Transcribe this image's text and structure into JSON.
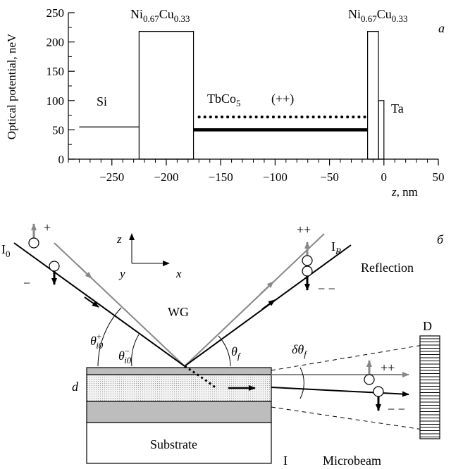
{
  "panel_a": {
    "panel_letter": "a",
    "ylabel": "Optical potential, neV",
    "xlabel_var": "z",
    "xlabel_unit": ", nm",
    "x_ticks": [
      -250,
      -200,
      -150,
      -100,
      -50,
      0,
      50
    ],
    "y_ticks": [
      0,
      50,
      100,
      150,
      200,
      250
    ],
    "xlim": [
      -290,
      50
    ],
    "ylim": [
      0,
      250
    ],
    "labels": {
      "si": "Si",
      "nicu_base": "Ni",
      "nicu_sub1": "0.67",
      "nicu_mid": "Cu",
      "nicu_sub2": "0.33",
      "tbco_base": "TbCo",
      "tbco_sub": "5",
      "pp_label": "(++)",
      "ta": "Ta"
    },
    "profile": {
      "si": {
        "z": [
          -280,
          -225
        ],
        "v": 55
      },
      "nicu1": {
        "z": [
          -225,
          -175
        ],
        "v": 218
      },
      "tbco_plus": {
        "z": [
          -175,
          -15
        ],
        "v": 72
      },
      "tbco_minus": {
        "z": [
          -175,
          -15
        ],
        "v": 50
      },
      "nicu2": {
        "z": [
          -15,
          -5
        ],
        "v": 218
      },
      "ta": {
        "z": [
          -5,
          0
        ],
        "v": 100
      }
    }
  },
  "panel_b": {
    "panel_letter": "б",
    "labels": {
      "i0_base": "I",
      "i0_sub": "0",
      "ir_base": "I",
      "ir_sub": "R",
      "reflection": "Reflection",
      "wg": "WG",
      "theta": "θ",
      "theta_plus_sub": "i0",
      "theta_plus_sup": "+",
      "theta_minus_sub": "i0",
      "theta_minus_sup": "−",
      "theta_f_sub": "f",
      "delta_theta_f": "δθ",
      "delta_sub": "f",
      "d": "d",
      "substrate": "Substrate",
      "label_I": "I",
      "microbeam": "Microbeam",
      "detector": "D",
      "axis_z": "z",
      "axis_y": "y",
      "axis_x": "x",
      "plus": "+",
      "minus": "−",
      "plusplus": "++",
      "minusminus": "− −"
    }
  },
  "colors": {
    "gray": "#888888",
    "black": "#000000",
    "layer_gray": "#bdbdbd",
    "dotted_fill": "#dcdcdc"
  }
}
